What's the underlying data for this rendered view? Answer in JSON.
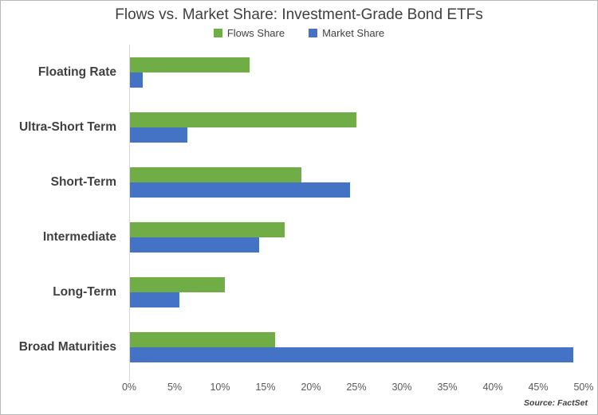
{
  "source": "Source: FactSet",
  "colors": {
    "flows_green": "#70AD47",
    "market_blue": "#4472C4",
    "title_text": "#404040",
    "axis_text": "#595959",
    "axis_line": "#d9d9d9",
    "border": "#b9b9b9"
  },
  "chart_data": {
    "type": "bar",
    "orientation": "horizontal",
    "title": "Flows vs. Market Share: Investment-Grade Bond ETFs",
    "categories": [
      "Floating Rate",
      "Ultra-Short Term",
      "Short-Term",
      "Intermediate",
      "Long-Term",
      "Broad Maturities"
    ],
    "series": [
      {
        "name": "Flows Share",
        "color": "#70AD47",
        "values": [
          13.2,
          24.9,
          18.9,
          17.0,
          10.4,
          16.0
        ]
      },
      {
        "name": "Market Share",
        "color": "#4472C4",
        "values": [
          1.4,
          6.3,
          24.2,
          14.2,
          5.4,
          48.8
        ]
      }
    ],
    "xlabel": "",
    "ylabel": "",
    "xlim": [
      0,
      50
    ],
    "x_ticks": [
      "0%",
      "5%",
      "10%",
      "15%",
      "20%",
      "25%",
      "30%",
      "35%",
      "40%",
      "45%",
      "50%"
    ],
    "grid": false,
    "legend_position": "top"
  }
}
